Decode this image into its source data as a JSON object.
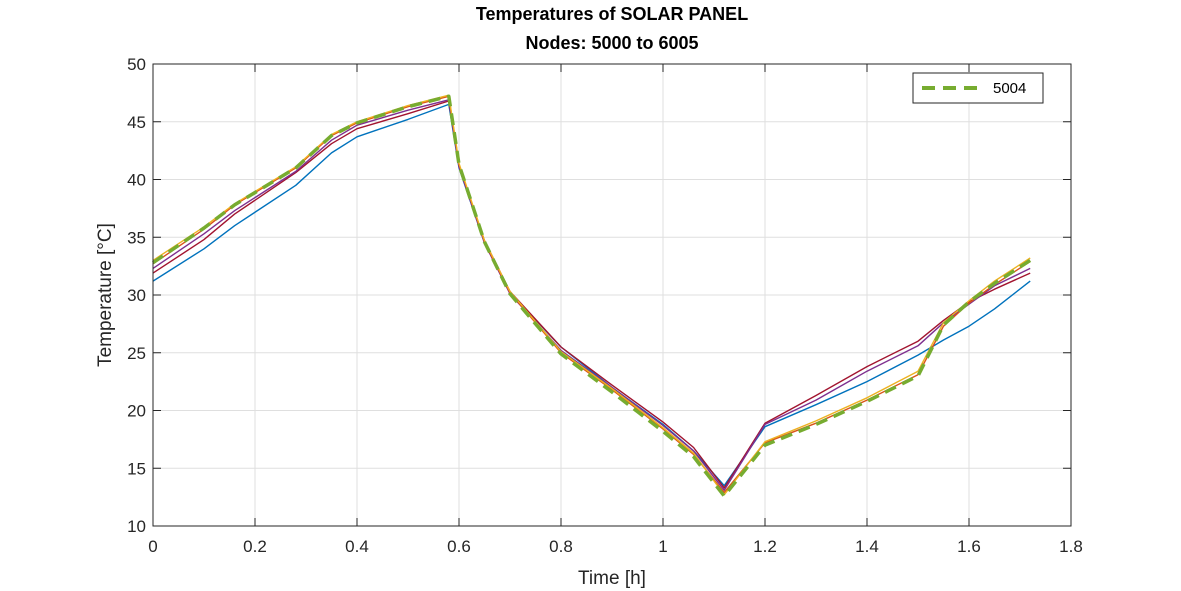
{
  "chart_data": {
    "type": "line",
    "title": "Temperatures of SOLAR PANEL",
    "subtitle": "Nodes: 5000 to 6005",
    "xlabel": "Time [h]",
    "ylabel": "Temperature [°C]",
    "xlim": [
      0,
      1.8
    ],
    "ylim": [
      10,
      50
    ],
    "x_ticks": [
      "0",
      "0.2",
      "0.4",
      "0.6",
      "0.8",
      "1",
      "1.2",
      "1.4",
      "1.6",
      "1.8"
    ],
    "y_ticks": [
      "10",
      "15",
      "20",
      "25",
      "30",
      "35",
      "40",
      "45",
      "50"
    ],
    "grid": true,
    "legend_position": "top-right",
    "legend": [
      {
        "label": "5004",
        "color": "#77AC30",
        "style": "dashed"
      }
    ],
    "series": [
      {
        "color": "#0072BD",
        "x": [
          0,
          0.1,
          0.16,
          0.28,
          0.35,
          0.4,
          0.5,
          0.58,
          0.6,
          0.65,
          0.7,
          0.8,
          0.9,
          1.0,
          1.06,
          1.12,
          1.2,
          1.3,
          1.4,
          1.5,
          1.55,
          1.6,
          1.65,
          1.72
        ],
        "y": [
          31.2,
          34.0,
          36.0,
          39.5,
          42.3,
          43.7,
          45.2,
          46.5,
          41.0,
          34.5,
          30.2,
          25.5,
          22.0,
          18.8,
          16.5,
          13.5,
          18.6,
          20.5,
          22.5,
          24.8,
          26.1,
          27.3,
          28.8,
          31.2
        ]
      },
      {
        "color": "#A2142F",
        "x": [
          0,
          0.1,
          0.16,
          0.28,
          0.35,
          0.4,
          0.5,
          0.58,
          0.6,
          0.65,
          0.7,
          0.8,
          0.9,
          1.0,
          1.06,
          1.12,
          1.2,
          1.3,
          1.4,
          1.5,
          1.55,
          1.6,
          1.65,
          1.72
        ],
        "y": [
          31.9,
          34.8,
          37.0,
          40.6,
          43.1,
          44.4,
          45.7,
          46.8,
          41.2,
          34.7,
          30.3,
          25.5,
          22.2,
          19.0,
          16.8,
          13.3,
          18.9,
          21.3,
          23.8,
          26.0,
          27.8,
          29.4,
          30.5,
          31.9
        ]
      },
      {
        "color": "#7E2F8E",
        "x": [
          0,
          0.1,
          0.16,
          0.28,
          0.35,
          0.4,
          0.5,
          0.58,
          0.6,
          0.65,
          0.7,
          0.8,
          0.9,
          1.0,
          1.06,
          1.12,
          1.2,
          1.3,
          1.4,
          1.5,
          1.55,
          1.6,
          1.65,
          1.72
        ],
        "y": [
          32.3,
          35.3,
          37.3,
          40.7,
          43.4,
          44.7,
          46.0,
          46.9,
          41.1,
          34.5,
          30.1,
          25.2,
          22.0,
          18.7,
          16.5,
          13.1,
          18.8,
          20.9,
          23.4,
          25.6,
          27.6,
          29.2,
          30.8,
          32.3
        ]
      },
      {
        "color": "#D95319",
        "x": [
          0,
          0.1,
          0.16,
          0.28,
          0.35,
          0.4,
          0.5,
          0.58,
          0.6,
          0.65,
          0.7,
          0.8,
          0.9,
          1.0,
          1.06,
          1.12,
          1.2,
          1.3,
          1.4,
          1.5,
          1.55,
          1.6,
          1.65,
          1.72
        ],
        "y": [
          32.7,
          35.7,
          37.8,
          41.0,
          43.8,
          44.9,
          46.3,
          47.2,
          41.3,
          34.6,
          30.2,
          25.0,
          21.8,
          18.4,
          16.2,
          12.9,
          17.2,
          18.9,
          20.9,
          23.1,
          27.3,
          29.3,
          30.9,
          32.9
        ]
      },
      {
        "color": "#EDB120",
        "x": [
          0,
          0.1,
          0.16,
          0.28,
          0.35,
          0.4,
          0.5,
          0.58,
          0.6,
          0.65,
          0.7,
          0.8,
          0.9,
          1.0,
          1.06,
          1.12,
          1.2,
          1.3,
          1.4,
          1.5,
          1.55,
          1.6,
          1.65,
          1.72
        ],
        "y": [
          33.0,
          35.9,
          37.9,
          41.1,
          43.9,
          45.0,
          46.4,
          47.3,
          41.4,
          34.7,
          30.3,
          25.1,
          21.9,
          18.5,
          16.3,
          12.7,
          17.3,
          19.1,
          21.1,
          23.4,
          27.6,
          29.5,
          31.2,
          33.2
        ]
      },
      {
        "name": "5004",
        "color": "#77AC30",
        "dashed": true,
        "x": [
          0,
          0.1,
          0.16,
          0.28,
          0.35,
          0.4,
          0.5,
          0.58,
          0.6,
          0.65,
          0.7,
          0.8,
          0.9,
          1.0,
          1.06,
          1.12,
          1.2,
          1.3,
          1.4,
          1.5,
          1.55,
          1.6,
          1.65,
          1.72
        ],
        "y": [
          32.8,
          35.8,
          37.8,
          41.0,
          43.8,
          44.9,
          46.3,
          47.2,
          41.3,
          34.6,
          30.1,
          24.9,
          21.6,
          18.2,
          16.0,
          12.6,
          17.0,
          18.8,
          20.8,
          23.0,
          27.4,
          29.4,
          31.0,
          33.0
        ]
      }
    ]
  }
}
